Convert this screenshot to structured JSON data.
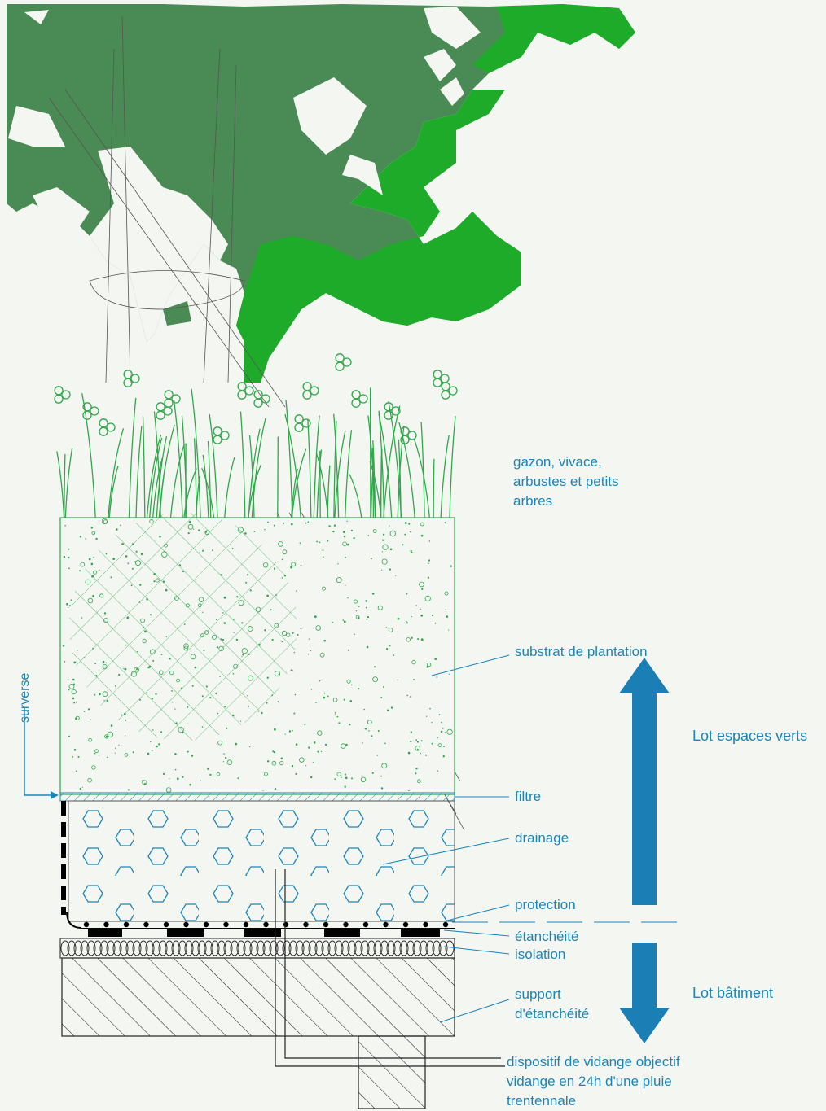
{
  "colors": {
    "dark_foliage": "#4a8a55",
    "bright_foliage": "#1fab2a",
    "grass": "#2fa84a",
    "label": "#1a86b8",
    "arrow": "#1b7fb5",
    "hatch": "#222222",
    "background": "#f4f6f2"
  },
  "labels": {
    "vegetation": [
      "gazon, vivace,",
      "arbustes et petits",
      "arbres"
    ],
    "substrate": "substrat de plantation",
    "filter": "filtre",
    "drainage": "drainage",
    "protection": "protection",
    "waterproofing": "étanchéité",
    "insulation": "isolation",
    "support": [
      "support",
      "d'étanchéité"
    ],
    "drain_device": [
      "dispositif de vidange objectif",
      "vidange en 24h d'une pluie",
      "trentennale"
    ],
    "overflow": "surverse"
  },
  "lots": {
    "green_spaces": "Lot espaces verts",
    "building": "Lot bâtiment"
  }
}
